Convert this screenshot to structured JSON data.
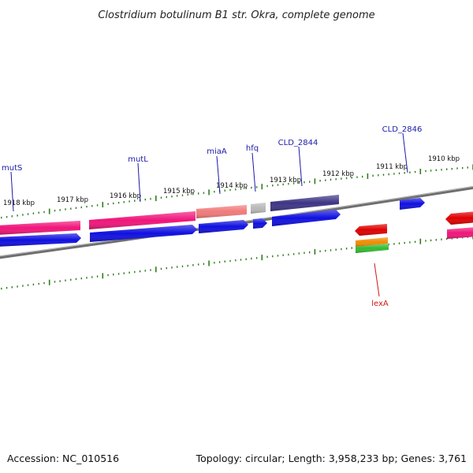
{
  "title": "Clostridium botulinum B1 str. Okra, complete genome",
  "footer": {
    "accession": "Accession: NC_010516",
    "summary": "Topology: circular; Length: 3,958,233 bp; Genes: 3,761"
  },
  "colors": {
    "backbone": "#7a7a7a",
    "tick": "#2e7d1e",
    "gene_label": "#1a1aa6",
    "highlight_label": "#d11a1a",
    "cds": "#1010e0",
    "mut_genes": "#f0157a",
    "miaA": "#f07a7a",
    "hfq": "#b8b8b8",
    "CLD_2844": "#3d3585",
    "lexA_red": "#e00000",
    "lexA_orange": "#f08c00",
    "lexA_green": "#33bb33"
  },
  "kbp_ticks": [
    {
      "label": "1918 kbp"
    },
    {
      "label": "1917 kbp"
    },
    {
      "label": "1916 kbp"
    },
    {
      "label": "1915 kbp"
    },
    {
      "label": "1914 kbp"
    },
    {
      "label": "1913 kbp"
    },
    {
      "label": "1912 kbp"
    },
    {
      "label": "1911 kbp"
    },
    {
      "label": "1910 kbp"
    }
  ],
  "gene_labels": [
    {
      "name": "mutS"
    },
    {
      "name": "mutL"
    },
    {
      "name": "miaA"
    },
    {
      "name": "hfq"
    },
    {
      "name": "CLD_2844"
    },
    {
      "name": "CLD_2846"
    },
    {
      "name": "lexA"
    }
  ]
}
